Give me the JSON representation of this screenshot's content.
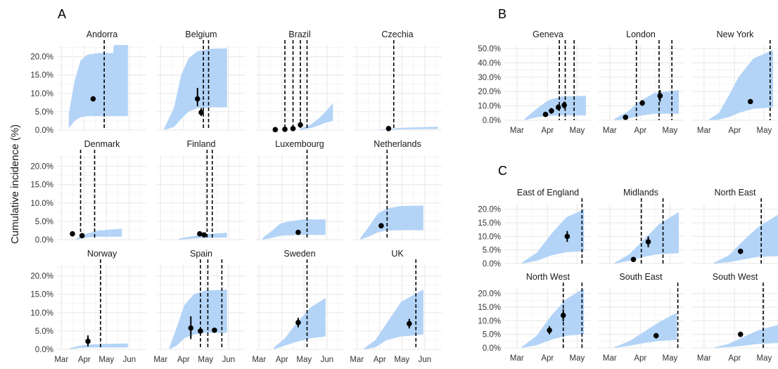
{
  "figure": {
    "y_axis_label": "Cumulative incidence (%)",
    "panel_letters": [
      "A",
      "B",
      "C"
    ],
    "colors": {
      "ribbon": "#b3d4f7",
      "point": "#000000",
      "vline": "#000000",
      "grid": "#e6e6e6",
      "text": "#333333"
    }
  },
  "chart_data": [
    {
      "panel": "A",
      "type": "area",
      "y_ticks": [
        "0.0%",
        "5.0%",
        "10.0%",
        "15.0%",
        "20.0%"
      ],
      "ylim": [
        0,
        23
      ],
      "x_ticks": [
        "Mar",
        "Apr",
        "May",
        "Jun"
      ],
      "x_tick_days": [
        0,
        31,
        61,
        92
      ],
      "xlim": [
        -5,
        115
      ],
      "grid": true,
      "facets": [
        {
          "title": "Andorra",
          "ribbon": [
            [
              10,
              0.5,
              4.5
            ],
            [
              18,
              2.5,
              13.5
            ],
            [
              26,
              3.5,
              19.0
            ],
            [
              35,
              3.8,
              20.5
            ],
            [
              50,
              3.8,
              21.0
            ],
            [
              70,
              3.8,
              21.0
            ],
            [
              71,
              3.8,
              23.2
            ],
            [
              90,
              3.8,
              23.2
            ]
          ],
          "points": [
            [
              43,
              8.5,
              8.5,
              8.5
            ]
          ],
          "vlines": [
            58
          ]
        },
        {
          "title": "Belgium",
          "ribbon": [
            [
              5,
              0,
              0.5
            ],
            [
              18,
              0.8,
              6.0
            ],
            [
              28,
              3.0,
              15.0
            ],
            [
              38,
              5.0,
              19.5
            ],
            [
              50,
              6.0,
              21.5
            ],
            [
              70,
              6.2,
              22.2
            ],
            [
              90,
              6.2,
              22.3
            ]
          ],
          "points": [
            [
              50,
              8.5,
              6.5,
              11.5
            ],
            [
              55,
              4.8,
              3.8,
              6.0
            ]
          ],
          "vlines": [
            58,
            65
          ]
        },
        {
          "title": "Brazil",
          "ribbon": [
            [
              55,
              0,
              0.3
            ],
            [
              70,
              0.5,
              1.5
            ],
            [
              80,
              1.2,
              3.0
            ],
            [
              90,
              2.0,
              5.0
            ],
            [
              100,
              2.5,
              7.3
            ]
          ],
          "points": [
            [
              22,
              0.1,
              0.1,
              0.1
            ],
            [
              35,
              0.2,
              0.1,
              0.3
            ],
            [
              46,
              0.4,
              0.2,
              0.6
            ],
            [
              56,
              1.4,
              1.1,
              1.7
            ]
          ],
          "vlines": [
            35,
            46,
            56,
            65
          ]
        },
        {
          "title": "Czechia",
          "ribbon": [
            [
              30,
              0,
              0.1
            ],
            [
              60,
              0.2,
              0.6
            ],
            [
              110,
              0.3,
              0.9
            ]
          ],
          "points": [
            [
              43,
              0.4,
              0.3,
              0.5
            ]
          ],
          "vlines": [
            50
          ]
        },
        {
          "title": "Denmark",
          "ribbon": [
            [
              20,
              0,
              0.3
            ],
            [
              35,
              0.6,
              1.7
            ],
            [
              50,
              0.8,
              2.5
            ],
            [
              82,
              0.8,
              3.0
            ]
          ],
          "points": [
            [
              15,
              1.6,
              1.3,
              1.9
            ],
            [
              28,
              1.1,
              0.8,
              1.4
            ]
          ],
          "vlines": [
            26,
            45
          ]
        },
        {
          "title": "Finland",
          "ribbon": [
            [
              25,
              0,
              0.3
            ],
            [
              45,
              0.3,
              1.0
            ],
            [
              60,
              0.5,
              1.5
            ],
            [
              90,
              0.6,
              1.9
            ]
          ],
          "points": [
            [
              53,
              1.6,
              1.0,
              2.2
            ],
            [
              59,
              1.3,
              0.8,
              1.8
            ]
          ],
          "vlines": [
            63,
            70
          ]
        },
        {
          "title": "Luxembourg",
          "ribbon": [
            [
              5,
              0,
              0.5
            ],
            [
              18,
              0.5,
              2.5
            ],
            [
              28,
              1.0,
              4.3
            ],
            [
              40,
              1.2,
              5.0
            ],
            [
              60,
              1.3,
              5.5
            ],
            [
              90,
              1.3,
              5.5
            ]
          ],
          "points": [
            [
              53,
              2.0,
              1.7,
              2.3
            ]
          ],
          "vlines": [
            65
          ]
        },
        {
          "title": "Netherlands",
          "ribbon": [
            [
              5,
              0,
              0.5
            ],
            [
              18,
              1.0,
              4.0
            ],
            [
              28,
              2.0,
              7.0
            ],
            [
              40,
              2.5,
              8.5
            ],
            [
              60,
              2.6,
              9.2
            ],
            [
              90,
              2.6,
              9.3
            ]
          ],
          "points": [
            [
              33,
              3.8,
              3.4,
              4.2
            ]
          ],
          "vlines": [
            41
          ]
        },
        {
          "title": "Norway",
          "ribbon": [
            [
              12,
              0,
              0.3
            ],
            [
              25,
              0.4,
              1.0
            ],
            [
              40,
              0.5,
              1.3
            ],
            [
              60,
              0.5,
              1.5
            ],
            [
              90,
              0.5,
              1.6
            ]
          ],
          "points": [
            [
              36,
              2.2,
              0.8,
              3.8
            ]
          ],
          "vlines": [
            53
          ]
        },
        {
          "title": "Spain",
          "ribbon": [
            [
              12,
              0,
              0.5
            ],
            [
              22,
              1.0,
              6.0
            ],
            [
              32,
              3.0,
              12.0
            ],
            [
              45,
              4.0,
              15.0
            ],
            [
              60,
              4.5,
              16.0
            ],
            [
              90,
              4.5,
              16.3
            ]
          ],
          "points": [
            [
              41,
              5.8,
              2.8,
              9.0
            ],
            [
              54,
              5.0,
              4.5,
              5.5
            ],
            [
              73,
              5.2,
              4.8,
              5.6
            ]
          ],
          "vlines": [
            54,
            64,
            83
          ]
        },
        {
          "title": "Sweden",
          "ribbon": [
            [
              20,
              0,
              0.5
            ],
            [
              35,
              1.0,
              3.0
            ],
            [
              50,
              2.0,
              7.0
            ],
            [
              70,
              3.0,
              11.5
            ],
            [
              90,
              3.5,
              14.0
            ]
          ],
          "points": [
            [
              53,
              7.3,
              6.0,
              8.6
            ]
          ],
          "vlines": [
            65
          ]
        },
        {
          "title": "UK",
          "ribbon": [
            [
              10,
              0,
              0.3
            ],
            [
              25,
              0.5,
              2.5
            ],
            [
              40,
              2.5,
              7.0
            ],
            [
              60,
              3.5,
              13.0
            ],
            [
              90,
              4.0,
              16.3
            ]
          ],
          "points": [
            [
              71,
              7.0,
              5.7,
              8.3
            ]
          ],
          "vlines": [
            80
          ]
        }
      ]
    },
    {
      "panel": "B",
      "type": "area",
      "y_ticks": [
        "0.0%",
        "10.0%",
        "20.0%",
        "30.0%",
        "40.0%",
        "50.0%"
      ],
      "ylim": [
        0,
        52
      ],
      "x_ticks": [
        "Mar",
        "Apr",
        "May"
      ],
      "x_tick_days": [
        0,
        31,
        61
      ],
      "xlim": [
        -12,
        75
      ],
      "grid": true,
      "facets": [
        {
          "title": "Geneva",
          "ribbon": [
            [
              8,
              0,
              1.0
            ],
            [
              20,
              2.0,
              8.0
            ],
            [
              32,
              3.0,
              14.0
            ],
            [
              45,
              3.3,
              16.5
            ],
            [
              70,
              3.3,
              17.0
            ]
          ],
          "points": [
            [
              29,
              4.0,
              2.5,
              5.5
            ],
            [
              35,
              6.5,
              4.5,
              8.5
            ],
            [
              42,
              9.0,
              7.0,
              11.0
            ],
            [
              48,
              10.5,
              8.0,
              13.0
            ]
          ],
          "vlines": [
            43,
            49,
            58
          ]
        },
        {
          "title": "London",
          "ribbon": [
            [
              5,
              0,
              1.0
            ],
            [
              18,
              1.0,
              6.0
            ],
            [
              30,
              3.0,
              13.0
            ],
            [
              45,
              4.5,
              19.0
            ],
            [
              70,
              4.5,
              21.0
            ]
          ],
          "points": [
            [
              16,
              2.0,
              1.2,
              2.8
            ],
            [
              33,
              12.0,
              10.0,
              14.0
            ],
            [
              51,
              17.0,
              13.0,
              21.0
            ]
          ],
          "vlines": [
            27,
            50,
            63
          ]
        },
        {
          "title": "New York",
          "ribbon": [
            [
              5,
              0,
              0.5
            ],
            [
              15,
              0.5,
              5.0
            ],
            [
              25,
              2.0,
              17.0
            ],
            [
              35,
              5.0,
              30.0
            ],
            [
              50,
              8.0,
              43.0
            ],
            [
              70,
              9.0,
              49.0
            ]
          ],
          "points": [
            [
              47,
              13.0,
              12.0,
              14.0
            ]
          ],
          "vlines": [
            67
          ]
        }
      ]
    },
    {
      "panel": "C",
      "type": "area",
      "y_ticks": [
        "0.0%",
        "5.0%",
        "10.0%",
        "15.0%",
        "20.0%"
      ],
      "ylim": [
        0,
        22
      ],
      "x_ticks": [
        "Mar",
        "Apr",
        "May"
      ],
      "x_tick_days": [
        0,
        31,
        61
      ],
      "xlim": [
        -12,
        75
      ],
      "grid": true,
      "facets": [
        {
          "title": "East of England",
          "ribbon": [
            [
              5,
              0,
              0.3
            ],
            [
              20,
              1.0,
              4.0
            ],
            [
              35,
              3.0,
              11.0
            ],
            [
              50,
              4.2,
              17.0
            ],
            [
              68,
              4.5,
              20.0
            ]
          ],
          "points": [
            [
              51,
              10.0,
              8.0,
              12.0
            ]
          ],
          "vlines": [
            66
          ]
        },
        {
          "title": "Midlands",
          "ribbon": [
            [
              5,
              0,
              0.3
            ],
            [
              20,
              1.0,
              3.5
            ],
            [
              35,
              2.5,
              9.0
            ],
            [
              50,
              3.5,
              14.5
            ],
            [
              70,
              3.8,
              19.0
            ]
          ],
          "points": [
            [
              24,
              1.5,
              0.8,
              2.2
            ],
            [
              39,
              8.0,
              6.0,
              10.0
            ]
          ],
          "vlines": [
            32,
            54
          ]
        },
        {
          "title": "North East",
          "ribbon": [
            [
              10,
              0,
              0.3
            ],
            [
              25,
              0.5,
              3.0
            ],
            [
              40,
              1.5,
              8.5
            ],
            [
              55,
              2.5,
              13.5
            ],
            [
              75,
              2.8,
              18.0
            ]
          ],
          "points": [
            [
              37,
              4.5,
              3.5,
              5.5
            ]
          ],
          "vlines": [
            58
          ]
        },
        {
          "title": "North West",
          "ribbon": [
            [
              5,
              0,
              0.3
            ],
            [
              20,
              1.0,
              4.5
            ],
            [
              35,
              3.0,
              12.0
            ],
            [
              50,
              4.5,
              18.0
            ],
            [
              68,
              5.0,
              22.0
            ]
          ],
          "points": [
            [
              33,
              6.5,
              5.0,
              8.0
            ],
            [
              47,
              12.0,
              9.8,
              14.2
            ]
          ],
          "vlines": [
            47,
            66
          ]
        },
        {
          "title": "South East",
          "ribbon": [
            [
              5,
              0,
              0.3
            ],
            [
              20,
              0.8,
              2.5
            ],
            [
              35,
              1.8,
              6.0
            ],
            [
              50,
              2.5,
              9.5
            ],
            [
              68,
              3.0,
              13.0
            ]
          ],
          "points": [
            [
              47,
              4.5,
              3.5,
              5.5
            ]
          ],
          "vlines": [
            69
          ]
        },
        {
          "title": "South West",
          "ribbon": [
            [
              10,
              0,
              0.2
            ],
            [
              25,
              0.3,
              1.5
            ],
            [
              40,
              0.8,
              4.0
            ],
            [
              55,
              1.5,
              6.5
            ],
            [
              75,
              1.8,
              8.5
            ]
          ],
          "points": [
            [
              37,
              5.0,
              4.0,
              6.0
            ]
          ],
          "vlines": [
            60
          ]
        }
      ]
    }
  ]
}
